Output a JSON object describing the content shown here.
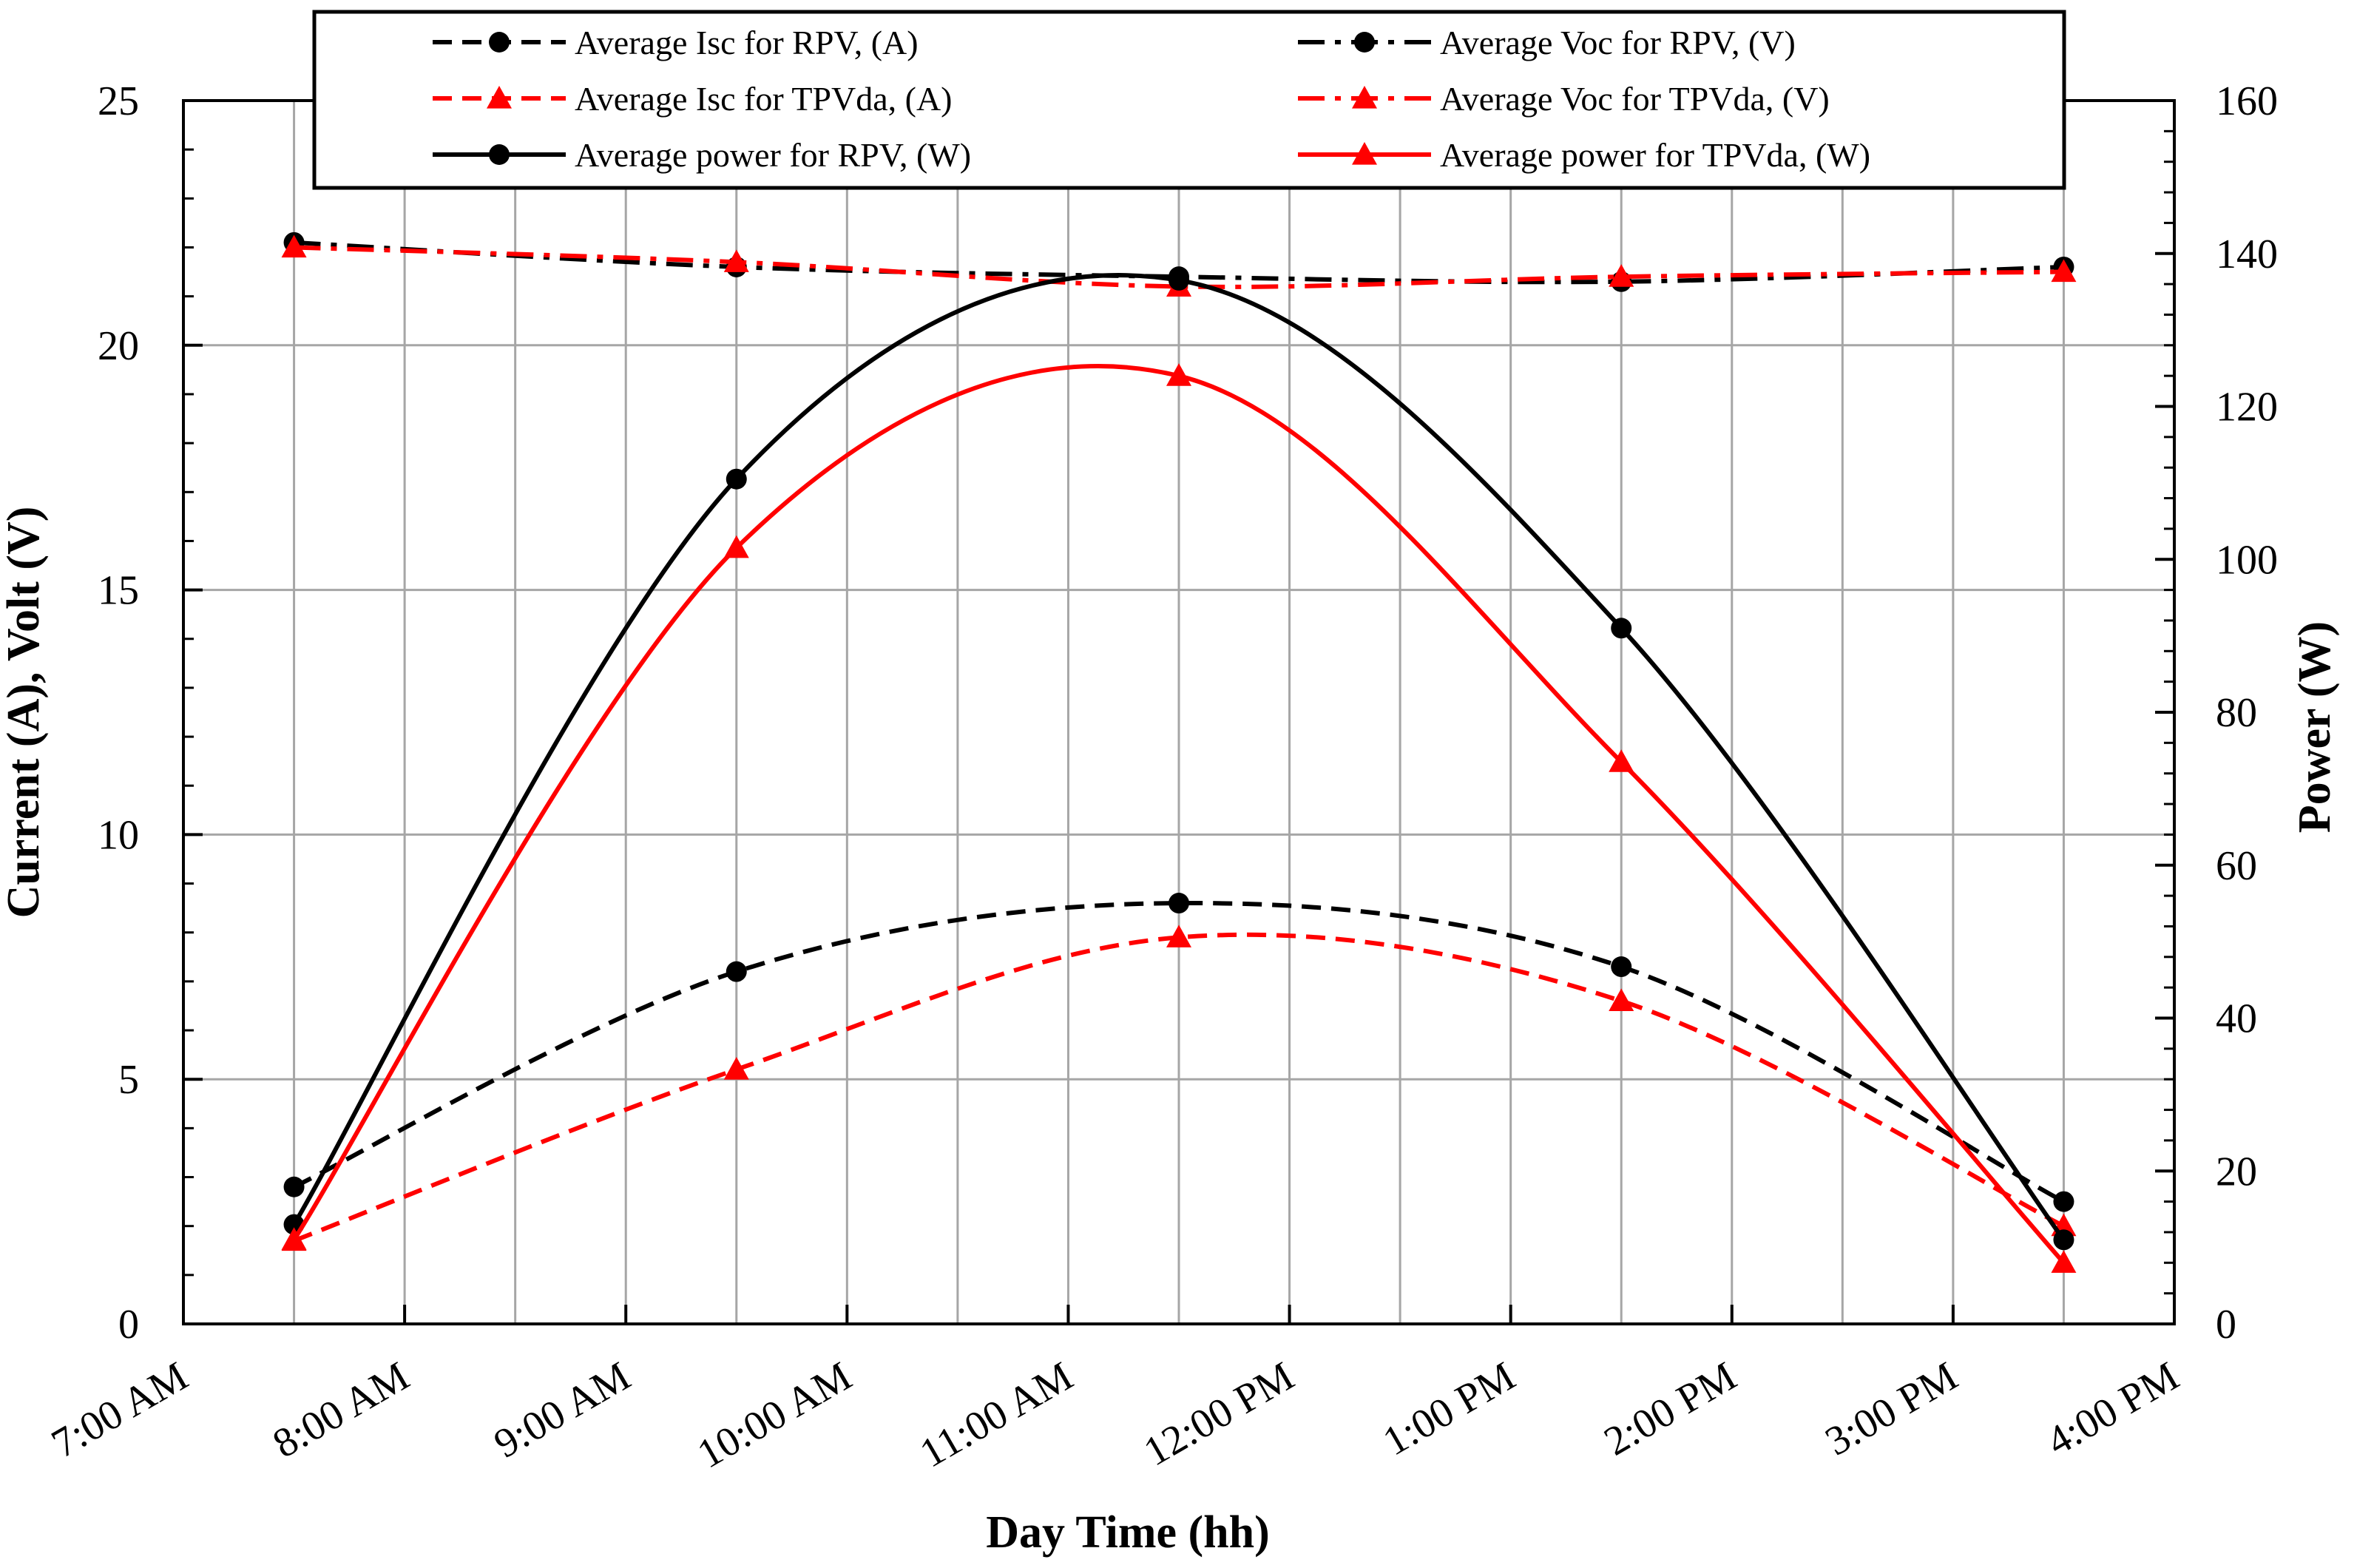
{
  "chart_data": {
    "type": "line",
    "xlabel": "Day Time (hh)",
    "ylabel": "Current (A), Volt (V)",
    "y2label": "Power (W)",
    "xlim": [
      7,
      16
    ],
    "ylim": [
      0,
      25
    ],
    "y2lim": [
      0,
      160
    ],
    "xticks": [
      {
        "v": 7,
        "label": "7:00 AM"
      },
      {
        "v": 8,
        "label": "8:00 AM"
      },
      {
        "v": 9,
        "label": "9:00 AM"
      },
      {
        "v": 10,
        "label": "10:00 AM"
      },
      {
        "v": 11,
        "label": "11:00 AM"
      },
      {
        "v": 12,
        "label": "12:00 PM"
      },
      {
        "v": 13,
        "label": "1:00 PM"
      },
      {
        "v": 14,
        "label": "2:00 PM"
      },
      {
        "v": 15,
        "label": "3:00 PM"
      },
      {
        "v": 16,
        "label": "4:00 PM"
      }
    ],
    "yticks": [
      0,
      5,
      10,
      15,
      20,
      25
    ],
    "y2ticks": [
      0,
      20,
      40,
      60,
      80,
      100,
      120,
      140,
      160
    ],
    "grid": true,
    "legend_position": "top",
    "x": [
      7.5,
      9.5,
      11.5,
      13.5,
      15.5
    ],
    "series": [
      {
        "name": "Average Isc for RPV, (A)",
        "axis": "left",
        "color": "#000000",
        "dash": "dash",
        "marker": "circle",
        "values": [
          2.8,
          7.2,
          8.6,
          7.3,
          2.5
        ]
      },
      {
        "name": "Average Voc for RPV,  (V)",
        "axis": "left",
        "color": "#000000",
        "dash": "dashdot",
        "marker": "circle",
        "values": [
          22.1,
          21.6,
          21.4,
          21.3,
          21.6
        ]
      },
      {
        "name": "Average Isc for TPVda, (A)",
        "axis": "left",
        "color": "#ff0000",
        "dash": "dash",
        "marker": "triangle",
        "values": [
          1.7,
          5.2,
          7.9,
          6.6,
          2.0
        ]
      },
      {
        "name": "Average Voc for TPVda, (V)",
        "axis": "left",
        "color": "#ff0000",
        "dash": "dashdot",
        "marker": "triangle",
        "values": [
          22.0,
          21.7,
          21.2,
          21.4,
          21.5
        ]
      },
      {
        "name": "Average power for RPV, (W)",
        "axis": "right",
        "color": "#000000",
        "dash": "solid",
        "marker": "circle",
        "values": [
          13,
          110.5,
          136.5,
          91,
          11
        ]
      },
      {
        "name": "Average power for TPVda, (W)",
        "axis": "right",
        "color": "#ff0000",
        "dash": "solid",
        "marker": "triangle",
        "values": [
          11,
          101.5,
          124,
          73.5,
          8
        ]
      }
    ],
    "legend_order": [
      0,
      1,
      2,
      3,
      4,
      5
    ]
  }
}
